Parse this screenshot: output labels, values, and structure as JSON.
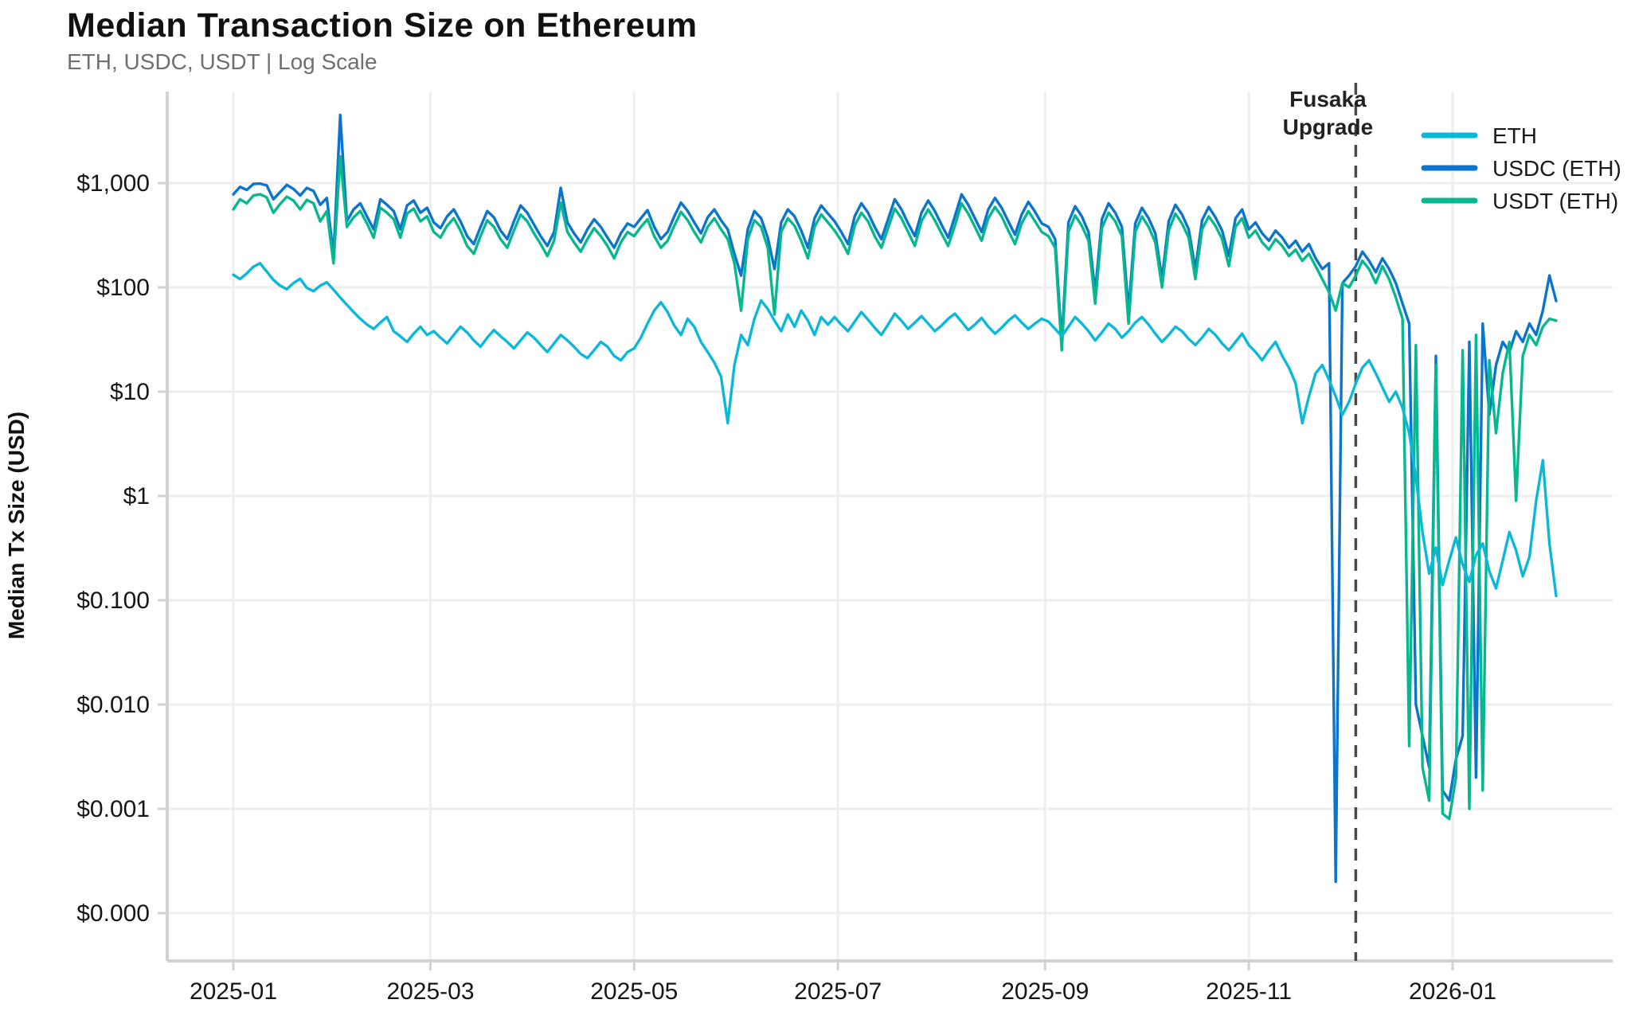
{
  "title": "Median Transaction Size on Ethereum",
  "subtitle": "ETH, USDC, USDT | Log Scale",
  "annotation": {
    "text_line1": "Fusaka",
    "text_line2": "Upgrade",
    "day": 336
  },
  "colors": {
    "eth": "#0bb8d8",
    "usdc": "#0b74cc",
    "usdt": "#06b78f",
    "grid": "#eeeeee",
    "spine": "#d2d2d2",
    "dashed_line": "#4a4a4a"
  },
  "legend": [
    {
      "label": "ETH",
      "color": "#0bb8d8"
    },
    {
      "label": "USDC (ETH)",
      "color": "#0b74cc"
    },
    {
      "label": "USDT (ETH)",
      "color": "#06b78f"
    }
  ],
  "y_axis": {
    "title": "Median Tx Size (USD)",
    "tick_values": [
      1000,
      100,
      10,
      1,
      0.1,
      0.01,
      0.001,
      0.0001
    ],
    "tick_labels": [
      "$1,000",
      "$100",
      "$10",
      "$1",
      "$0.100",
      "$0.010",
      "$0.001",
      "$0.000"
    ]
  },
  "x_axis": {
    "tick_days": [
      0,
      59,
      120,
      181,
      243,
      304,
      365
    ],
    "tick_labels": [
      "2025-01",
      "2025-03",
      "2025-05",
      "2025-07",
      "2025-09",
      "2025-11",
      "2026-01"
    ]
  },
  "chart_data": {
    "type": "line",
    "title": "Median Transaction Size on Ethereum",
    "subtitle": "ETH, USDC, USDT | Log Scale",
    "ylabel": "Median Tx Size (USD)",
    "xlabel": "",
    "scale": "log",
    "ylim": [
      3e-05,
      7500
    ],
    "x_start_date": "2025-01-01",
    "x_end_date": "2026-02-01",
    "x_step_days": 2,
    "event_line": {
      "label": "Fusaka Upgrade",
      "date": "2025-12-03",
      "day": 336
    },
    "legend_position": "top-right",
    "grid": true,
    "series": [
      {
        "name": "USDC (ETH)",
        "color": "#0b74cc",
        "values": [
          780,
          920,
          860,
          980,
          990,
          950,
          700,
          820,
          960,
          880,
          760,
          900,
          840,
          620,
          720,
          200,
          4500,
          430,
          560,
          640,
          480,
          360,
          700,
          620,
          540,
          360,
          610,
          680,
          520,
          580,
          420,
          370,
          480,
          560,
          430,
          310,
          260,
          380,
          540,
          470,
          350,
          290,
          430,
          610,
          520,
          400,
          310,
          250,
          340,
          900,
          420,
          330,
          270,
          360,
          450,
          380,
          300,
          240,
          330,
          410,
          380,
          460,
          550,
          380,
          290,
          340,
          480,
          650,
          540,
          420,
          330,
          470,
          560,
          440,
          360,
          210,
          130,
          360,
          540,
          460,
          300,
          150,
          420,
          560,
          480,
          350,
          240,
          460,
          610,
          510,
          430,
          340,
          260,
          480,
          640,
          520,
          380,
          290,
          450,
          700,
          560,
          410,
          310,
          520,
          680,
          540,
          400,
          300,
          480,
          780,
          620,
          460,
          340,
          560,
          720,
          580,
          430,
          320,
          500,
          660,
          530,
          410,
          380,
          290,
          30,
          420,
          600,
          480,
          340,
          90,
          450,
          640,
          520,
          380,
          60,
          410,
          580,
          460,
          330,
          120,
          430,
          620,
          500,
          360,
          150,
          440,
          590,
          470,
          350,
          200,
          460,
          560,
          360,
          420,
          330,
          280,
          350,
          300,
          240,
          280,
          220,
          260,
          190,
          150,
          170,
          0.0002,
          110,
          130,
          160,
          220,
          180,
          140,
          190,
          150,
          110,
          70,
          45,
          0.01,
          0.005,
          0.0025,
          22,
          0.0015,
          0.0012,
          0.003,
          0.005,
          30,
          0.002,
          45,
          6,
          18,
          30,
          24,
          38,
          30,
          45,
          35,
          60,
          130,
          74
        ]
      },
      {
        "name": "USDT (ETH)",
        "color": "#06b78f",
        "values": [
          560,
          700,
          640,
          760,
          780,
          730,
          520,
          630,
          740,
          680,
          560,
          690,
          640,
          430,
          540,
          170,
          1800,
          380,
          470,
          540,
          410,
          300,
          580,
          520,
          450,
          300,
          510,
          570,
          430,
          480,
          340,
          300,
          390,
          460,
          350,
          250,
          210,
          310,
          440,
          380,
          290,
          240,
          350,
          500,
          430,
          330,
          260,
          200,
          280,
          650,
          340,
          270,
          220,
          290,
          370,
          310,
          250,
          190,
          270,
          340,
          310,
          380,
          450,
          310,
          240,
          280,
          390,
          530,
          440,
          340,
          270,
          380,
          460,
          360,
          290,
          170,
          60,
          290,
          440,
          380,
          240,
          55,
          340,
          460,
          390,
          280,
          190,
          380,
          500,
          420,
          350,
          280,
          210,
          390,
          520,
          430,
          310,
          240,
          370,
          570,
          460,
          340,
          250,
          430,
          560,
          440,
          330,
          250,
          390,
          640,
          510,
          380,
          280,
          460,
          590,
          480,
          350,
          260,
          410,
          540,
          430,
          340,
          310,
          240,
          25,
          340,
          490,
          390,
          280,
          70,
          370,
          520,
          430,
          310,
          45,
          340,
          480,
          380,
          270,
          100,
          350,
          510,
          410,
          300,
          120,
          360,
          480,
          390,
          290,
          160,
          380,
          460,
          300,
          350,
          270,
          230,
          290,
          250,
          200,
          230,
          180,
          210,
          160,
          120,
          90,
          60,
          110,
          100,
          130,
          180,
          150,
          110,
          160,
          120,
          80,
          50,
          0.004,
          28,
          0.0025,
          0.0012,
          18,
          0.0009,
          0.0008,
          0.002,
          25,
          0.001,
          35,
          0.0015,
          20,
          4,
          15,
          30,
          0.9,
          22,
          35,
          28,
          42,
          50,
          48
        ]
      },
      {
        "name": "ETH",
        "color": "#0bb8d8",
        "values": [
          132,
          120,
          136,
          158,
          170,
          142,
          118,
          104,
          96,
          110,
          121,
          99,
          92,
          104,
          112,
          95,
          80,
          68,
          58,
          50,
          44,
          40,
          46,
          52,
          38,
          34,
          30,
          36,
          42,
          35,
          38,
          33,
          29,
          35,
          42,
          37,
          31,
          27,
          33,
          39,
          34,
          30,
          26,
          31,
          37,
          33,
          28,
          24,
          29,
          35,
          31,
          27,
          23,
          21,
          25,
          30,
          27,
          22,
          20,
          24,
          26,
          33,
          45,
          60,
          72,
          58,
          43,
          35,
          50,
          42,
          30,
          24,
          19,
          14,
          5,
          18,
          35,
          28,
          50,
          75,
          62,
          48,
          38,
          55,
          42,
          60,
          48,
          35,
          52,
          44,
          52,
          44,
          38,
          47,
          58,
          49,
          41,
          35,
          44,
          56,
          48,
          40,
          46,
          53,
          45,
          38,
          43,
          50,
          56,
          47,
          39,
          44,
          51,
          42,
          36,
          41,
          48,
          54,
          46,
          40,
          45,
          50,
          47,
          40,
          34,
          42,
          52,
          45,
          38,
          31,
          37,
          45,
          40,
          33,
          38,
          46,
          52,
          44,
          36,
          30,
          35,
          42,
          38,
          32,
          28,
          33,
          40,
          35,
          29,
          25,
          30,
          36,
          28,
          24,
          20,
          25,
          30,
          22,
          17,
          12,
          5,
          9,
          15,
          18,
          13,
          9,
          6,
          8,
          12,
          17,
          20,
          15,
          11,
          8,
          10,
          7,
          4,
          1.5,
          0.45,
          0.18,
          0.32,
          0.14,
          0.24,
          0.4,
          0.22,
          0.15,
          0.27,
          0.35,
          0.19,
          0.13,
          0.24,
          0.45,
          0.3,
          0.17,
          0.26,
          0.9,
          2.2,
          0.35,
          0.11
        ]
      }
    ]
  }
}
